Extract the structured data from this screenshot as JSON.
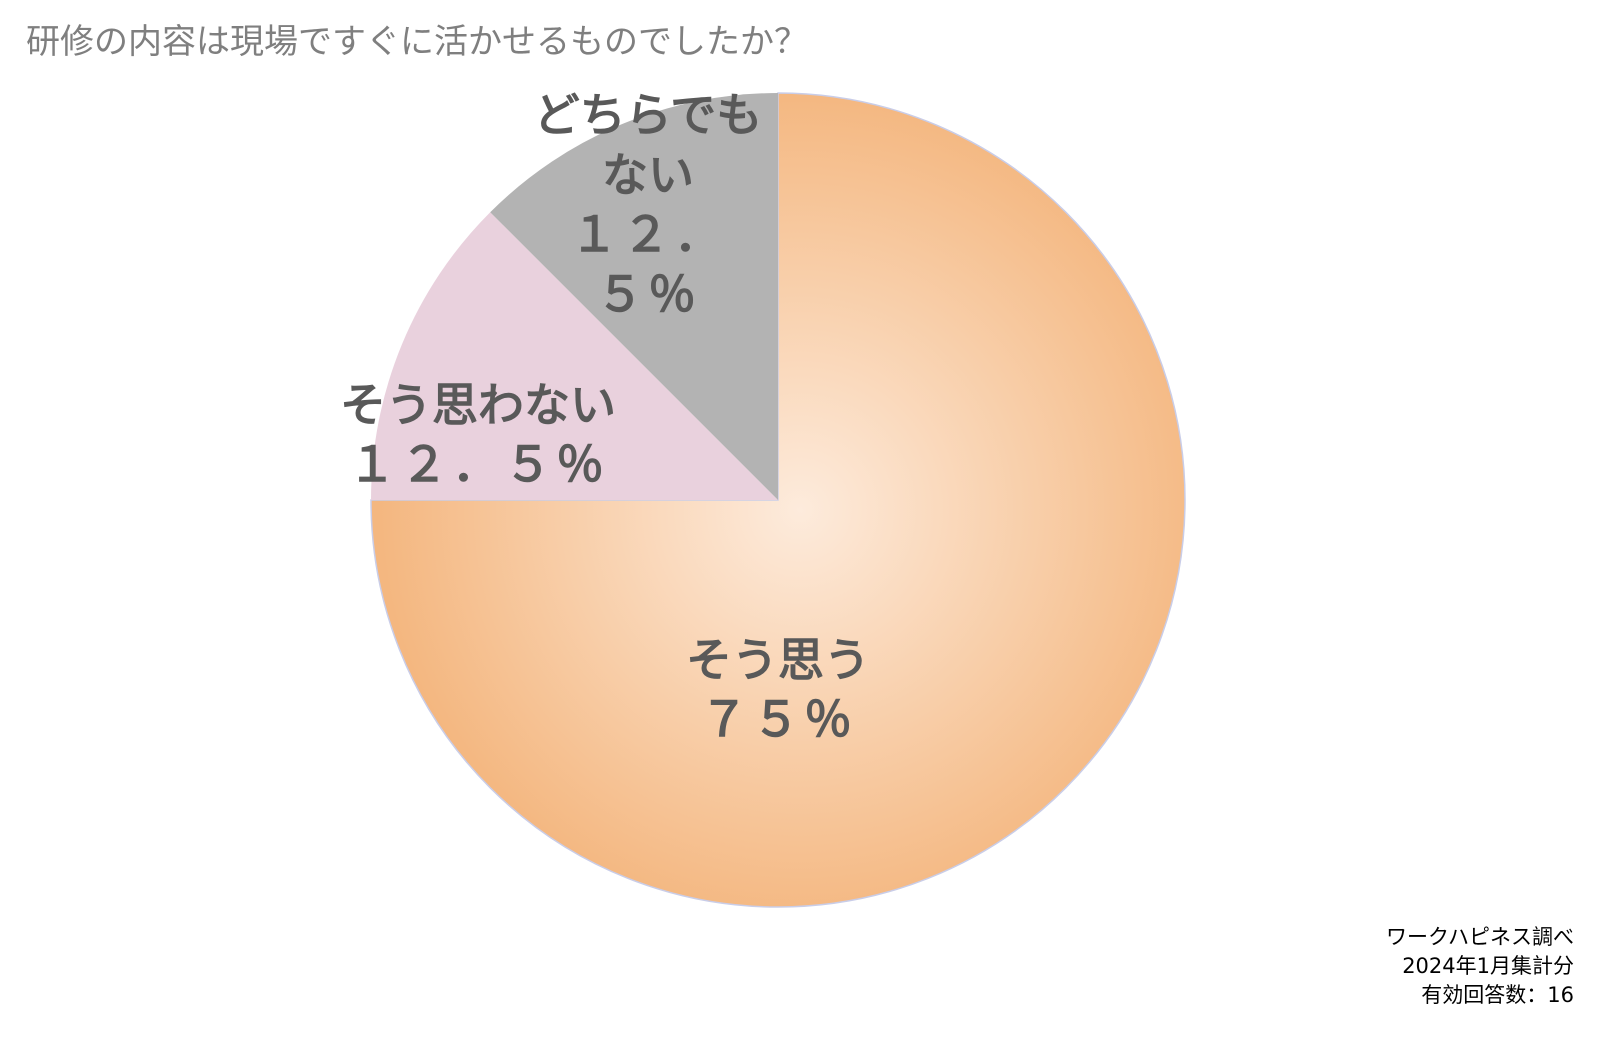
{
  "chart_data": {
    "type": "pie",
    "title": "研修の内容は現場ですぐに活かせるものでしたか？",
    "categories": [
      "そう思う",
      "そう思わない",
      "どちらでもない"
    ],
    "values": [
      75,
      12.5,
      12.5
    ],
    "value_labels": [
      "７５％",
      "１２．５％",
      "１２．５％"
    ],
    "colors": [
      "#f4b780",
      "#e9d1dd",
      "#b3b3b3"
    ],
    "notes": [
      "ワークハピネス調べ",
      "2024年1月集計分",
      "有効回答数：16"
    ]
  }
}
